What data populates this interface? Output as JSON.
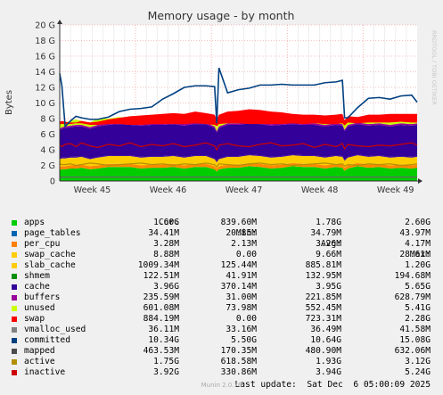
{
  "chart_data": {
    "type": "area",
    "title": "Memory usage - by month",
    "ylabel": "Bytes",
    "watermark": "RRDTOOL / TOBI OETIKER",
    "ylim": [
      0,
      20
    ],
    "y_ticks": [
      {
        "v": 0,
        "label": "0"
      },
      {
        "v": 2,
        "label": "2 G"
      },
      {
        "v": 4,
        "label": "4 G"
      },
      {
        "v": 6,
        "label": "6 G"
      },
      {
        "v": 8,
        "label": "8 G"
      },
      {
        "v": 10,
        "label": "10 G"
      },
      {
        "v": 12,
        "label": "12 G"
      },
      {
        "v": 14,
        "label": "14 G"
      },
      {
        "v": 16,
        "label": "16 G"
      },
      {
        "v": 18,
        "label": "18 G"
      },
      {
        "v": 20,
        "label": "20 G"
      }
    ],
    "x_range": [
      0,
      33
    ],
    "x_ticks": [
      {
        "v": 3,
        "label": "Week 45"
      },
      {
        "v": 10,
        "label": "Week 46"
      },
      {
        "v": 17,
        "label": "Week 47"
      },
      {
        "v": 24,
        "label": "Week 48"
      },
      {
        "v": 31,
        "label": "Week 49"
      }
    ],
    "x_grid": [
      0,
      7,
      14,
      21,
      28
    ],
    "x_gridminor": [
      1,
      2,
      3,
      4,
      5,
      6,
      8,
      9,
      10,
      11,
      12,
      13,
      15,
      16,
      17,
      18,
      19,
      20,
      22,
      23,
      24,
      25,
      26,
      27,
      29,
      30,
      31,
      32
    ],
    "x": [
      0,
      0.2,
      0.5,
      1,
      1.5,
      2,
      2.8,
      3.5,
      4.5,
      5.5,
      6.5,
      7.5,
      8.5,
      9.5,
      10.5,
      11.5,
      12.5,
      13.5,
      14.3,
      14.5,
      14.7,
      15.5,
      16.5,
      17.5,
      18.5,
      19.5,
      20.5,
      21.5,
      22.5,
      23.5,
      24.5,
      25.5,
      26.1,
      26.3,
      26.6,
      27.5,
      28.5,
      29.5,
      30.5,
      31.5,
      32.5,
      33
    ],
    "stack_order": [
      "apps",
      "per_cpu",
      "slab_cache",
      "shmem",
      "cache",
      "buffers",
      "unused"
    ],
    "series": [
      {
        "name": "apps",
        "color": "#00cc00",
        "values": [
          1.4,
          1.5,
          1.5,
          1.6,
          1.6,
          1.7,
          1.5,
          1.6,
          1.8,
          1.8,
          1.8,
          1.6,
          1.7,
          1.7,
          1.8,
          1.6,
          1.8,
          1.8,
          1.5,
          1.2,
          1.5,
          1.7,
          1.7,
          1.9,
          1.8,
          1.6,
          1.7,
          1.9,
          1.8,
          1.8,
          1.6,
          1.8,
          1.7,
          1.3,
          1.6,
          1.9,
          1.7,
          1.8,
          1.6,
          1.7,
          1.6,
          1.7
        ]
      },
      {
        "name": "per_cpu",
        "color": "#ff8800",
        "values": [
          0.4,
          0.4,
          0.4,
          0.4,
          0.4,
          0.4,
          0.4,
          0.4,
          0.4,
          0.4,
          0.4,
          0.4,
          0.4,
          0.4,
          0.4,
          0.4,
          0.4,
          0.4,
          0.4,
          0.4,
          0.4,
          0.4,
          0.4,
          0.4,
          0.4,
          0.4,
          0.4,
          0.4,
          0.4,
          0.4,
          0.4,
          0.4,
          0.4,
          0.4,
          0.4,
          0.4,
          0.4,
          0.4,
          0.4,
          0.4,
          0.4,
          0.4
        ]
      },
      {
        "name": "slab_cache",
        "color": "#ffcc00",
        "values": [
          1.0,
          1.0,
          1.0,
          1.0,
          1.0,
          1.0,
          0.9,
          1.0,
          1.0,
          1.0,
          1.0,
          1.0,
          1.0,
          1.0,
          1.0,
          1.0,
          1.0,
          1.0,
          0.9,
          0.8,
          0.9,
          1.0,
          1.0,
          1.0,
          1.0,
          1.0,
          1.0,
          1.0,
          1.0,
          1.0,
          1.0,
          1.0,
          1.0,
          0.9,
          1.0,
          1.0,
          1.0,
          1.0,
          1.0,
          1.0,
          1.0,
          1.0
        ]
      },
      {
        "name": "shmem",
        "color": "#330099",
        "values": [
          0.1,
          0.1,
          0.1,
          0.1,
          0.1,
          0.1,
          0.1,
          0.1,
          0.1,
          0.1,
          0.1,
          0.1,
          0.1,
          0.1,
          0.1,
          0.1,
          0.1,
          0.1,
          0.1,
          0.1,
          0.1,
          0.1,
          0.1,
          0.1,
          0.1,
          0.1,
          0.1,
          0.1,
          0.1,
          0.1,
          0.1,
          0.1,
          0.1,
          0.1,
          0.1,
          0.1,
          0.1,
          0.1,
          0.1,
          0.1,
          0.1,
          0.1
        ]
      },
      {
        "name": "cache",
        "color": "#330099",
        "values": [
          3.6,
          3.7,
          3.8,
          3.8,
          3.9,
          3.8,
          3.8,
          3.9,
          3.9,
          4.0,
          3.9,
          4.0,
          4.0,
          4.0,
          4.0,
          4.0,
          4.0,
          4.0,
          3.9,
          3.7,
          3.9,
          4.0,
          4.0,
          4.0,
          4.0,
          4.0,
          4.0,
          3.9,
          3.9,
          3.9,
          3.9,
          3.9,
          3.9,
          3.7,
          3.9,
          3.9,
          3.9,
          3.9,
          3.9,
          4.0,
          4.0,
          4.0
        ]
      },
      {
        "name": "buffers",
        "color": "#990099",
        "values": [
          0.2,
          0.2,
          0.2,
          0.2,
          0.2,
          0.2,
          0.2,
          0.2,
          0.2,
          0.2,
          0.2,
          0.2,
          0.2,
          0.2,
          0.2,
          0.2,
          0.2,
          0.2,
          0.2,
          0.2,
          0.2,
          0.2,
          0.2,
          0.2,
          0.2,
          0.2,
          0.2,
          0.2,
          0.2,
          0.2,
          0.2,
          0.2,
          0.2,
          0.2,
          0.2,
          0.2,
          0.2,
          0.2,
          0.2,
          0.2,
          0.2,
          0.2
        ]
      },
      {
        "name": "unused",
        "color": "#ccff00",
        "values": [
          0.6,
          0.8,
          0.5,
          0.6,
          0.7,
          0.5,
          0.6,
          0.8,
          0.6,
          0.7,
          0.6,
          0.5,
          0.6,
          0.6,
          0.5,
          0.6,
          0.5,
          0.5,
          0.5,
          0.4,
          0.6,
          0.5,
          0.6,
          0.5,
          0.5,
          0.6,
          0.6,
          0.7,
          0.6,
          0.6,
          0.8,
          0.6,
          0.8,
          0.5,
          0.9,
          0.6,
          0.6,
          0.6,
          0.7,
          0.6,
          0.6,
          0.6
        ]
      },
      {
        "name": "swap",
        "color": "#ff0000",
        "line_bottom": [
          7.3,
          7.3,
          7.3,
          7.3,
          7.4,
          7.4,
          7.2,
          7.2,
          7.3,
          7.3,
          7.2,
          7.2,
          7.3,
          7.3,
          7.3,
          7.3,
          7.4,
          7.3,
          7.2,
          7.0,
          7.3,
          7.4,
          7.4,
          7.3,
          7.3,
          7.3,
          7.3,
          7.4,
          7.3,
          7.4,
          7.3,
          7.3,
          7.4,
          7.1,
          7.5,
          7.4,
          7.5,
          7.5,
          7.5,
          7.6,
          7.5,
          7.5
        ],
        "line_top": [
          7.6,
          7.7,
          7.6,
          7.5,
          7.5,
          7.7,
          7.5,
          7.6,
          7.9,
          8.1,
          8.3,
          8.4,
          8.5,
          8.6,
          8.7,
          8.6,
          8.9,
          8.7,
          8.5,
          7.9,
          8.5,
          8.9,
          9.0,
          9.2,
          9.1,
          8.9,
          8.8,
          8.6,
          8.5,
          8.5,
          8.4,
          8.5,
          8.6,
          7.8,
          8.3,
          8.2,
          8.5,
          8.5,
          8.6,
          8.6,
          8.6,
          8.6
        ]
      },
      {
        "name": "committed",
        "color": "#004080",
        "line_values": [
          13.8,
          12.2,
          7.0,
          7.7,
          8.3,
          8.1,
          7.9,
          7.9,
          8.2,
          8.9,
          9.2,
          9.3,
          9.5,
          10.5,
          11.2,
          12.0,
          12.2,
          12.2,
          12.1,
          7.4,
          14.5,
          11.3,
          11.7,
          11.9,
          12.3,
          12.3,
          12.4,
          12.3,
          12.3,
          12.3,
          12.6,
          12.7,
          12.9,
          8.1,
          8.1,
          9.4,
          10.6,
          10.7,
          10.5,
          10.9,
          11.0,
          10.1
        ]
      },
      {
        "name": "inactive",
        "color": "#cc0000",
        "line_values": [
          4.6,
          4.4,
          4.7,
          4.8,
          4.4,
          4.9,
          4.5,
          4.3,
          4.7,
          4.5,
          4.9,
          4.4,
          4.7,
          4.5,
          4.8,
          4.4,
          4.6,
          4.9,
          4.5,
          4.0,
          4.6,
          4.8,
          4.5,
          4.4,
          4.7,
          4.9,
          4.5,
          4.6,
          4.8,
          4.3,
          4.7,
          4.4,
          4.8,
          4.1,
          4.7,
          4.5,
          4.4,
          4.6,
          4.5,
          4.7,
          4.9,
          4.6
        ]
      },
      {
        "name": "mapped",
        "color": "#666666",
        "line_values": [
          0.5,
          0.5,
          0.5,
          0.5,
          0.5,
          0.5,
          0.5,
          0.5,
          0.5,
          0.5,
          0.5,
          0.5,
          0.5,
          0.5,
          0.5,
          0.5,
          0.5,
          0.5,
          0.5,
          0.5,
          0.5,
          0.5,
          0.5,
          0.5,
          0.5,
          0.5,
          0.5,
          0.5,
          0.5,
          0.5,
          0.5,
          0.5,
          0.5,
          0.5,
          0.5,
          0.5,
          0.5,
          0.5,
          0.5,
          0.5,
          0.5,
          0.5
        ]
      },
      {
        "name": "active",
        "color": "#b39000",
        "line_values": [
          2.2,
          2.1,
          2.1,
          2.2,
          2.0,
          2.1,
          2.3,
          2.2,
          2.0,
          2.1,
          2.2,
          2.3,
          2.1,
          2.2,
          2.0,
          2.2,
          2.1,
          2.3,
          2.1,
          1.8,
          2.2,
          2.1,
          2.0,
          2.2,
          2.3,
          2.1,
          2.2,
          2.0,
          2.1,
          2.2,
          2.3,
          2.1,
          2.2,
          1.9,
          2.1,
          2.0,
          2.2,
          2.1,
          2.2,
          2.0,
          2.1,
          2.2
        ]
      }
    ]
  },
  "legend": {
    "headers": {
      "cur": "Cur:",
      "min": "Min:",
      "avg": "Avg:",
      "max": "Max:"
    },
    "rows": [
      {
        "name": "apps",
        "color": "#00cc00",
        "cur": "1.60G",
        "min": "839.60M",
        "avg": "1.78G",
        "max": "2.60G"
      },
      {
        "name": "page_tables",
        "color": "#0066b3",
        "cur": "34.41M",
        "min": "20.85M",
        "avg": "34.79M",
        "max": "43.97M"
      },
      {
        "name": "per_cpu",
        "color": "#ff8000",
        "cur": "3.28M",
        "min": "2.13M",
        "avg": "3.26M",
        "max": "4.17M"
      },
      {
        "name": "swap_cache",
        "color": "#ffcc00",
        "cur": "8.88M",
        "min": "0.00",
        "avg": "9.66M",
        "max": "28.61M"
      },
      {
        "name": "slab_cache",
        "color": "#ffcc00",
        "cur": "1009.34M",
        "min": "125.44M",
        "avg": "885.81M",
        "max": "1.20G"
      },
      {
        "name": "shmem",
        "color": "#008f00",
        "cur": "122.51M",
        "min": "41.91M",
        "avg": "132.95M",
        "max": "194.68M"
      },
      {
        "name": "cache",
        "color": "#330099",
        "cur": "3.96G",
        "min": "370.14M",
        "avg": "3.95G",
        "max": "5.65G"
      },
      {
        "name": "buffers",
        "color": "#990099",
        "cur": "235.59M",
        "min": "31.00M",
        "avg": "221.85M",
        "max": "628.79M"
      },
      {
        "name": "unused",
        "color": "#ccff00",
        "cur": "601.08M",
        "min": "73.98M",
        "avg": "552.45M",
        "max": "5.41G"
      },
      {
        "name": "swap",
        "color": "#ff0000",
        "cur": "884.19M",
        "min": "0.00",
        "avg": "723.31M",
        "max": "2.28G"
      },
      {
        "name": "vmalloc_used",
        "color": "#808080",
        "cur": "36.11M",
        "min": "33.16M",
        "avg": "36.49M",
        "max": "41.58M"
      },
      {
        "name": "committed",
        "color": "#004080",
        "cur": "10.34G",
        "min": "5.50G",
        "avg": "10.64G",
        "max": "15.08G"
      },
      {
        "name": "mapped",
        "color": "#4d4d4d",
        "cur": "463.53M",
        "min": "170.35M",
        "avg": "480.90M",
        "max": "632.06M"
      },
      {
        "name": "active",
        "color": "#b38f00",
        "cur": "1.75G",
        "min": "618.58M",
        "avg": "1.93G",
        "max": "3.12G"
      },
      {
        "name": "inactive",
        "color": "#cc0000",
        "cur": "3.92G",
        "min": "330.86M",
        "avg": "3.94G",
        "max": "5.24G"
      }
    ]
  },
  "footer": {
    "last_update": "Last update:  Sat Dec  6 05:00:09 2025",
    "version": "Munin 2.0.76"
  }
}
